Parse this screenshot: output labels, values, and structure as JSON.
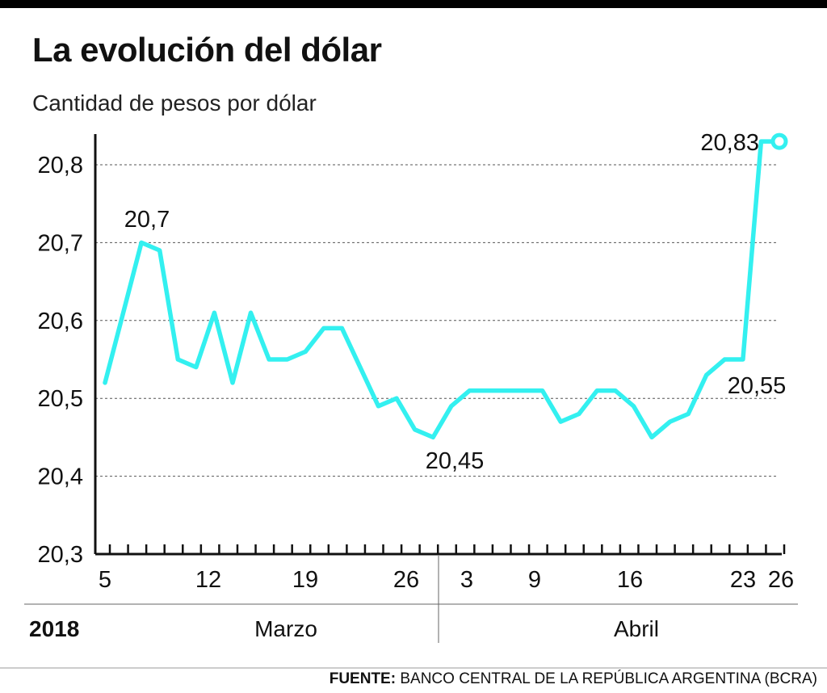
{
  "header": {
    "title": "La evolución del dólar",
    "subtitle": "Cantidad de pesos por dólar"
  },
  "source": {
    "label": "FUENTE:",
    "text": "BANCO CENTRAL DE LA REPÚBLICA ARGENTINA (BCRA)"
  },
  "colors": {
    "line": "#33f0f0",
    "axis": "#111111",
    "grid": "#555555"
  },
  "chart_data": {
    "type": "line",
    "title": "La evolución del dólar",
    "ylabel": "Cantidad de pesos por dólar",
    "ylim": [
      20.3,
      20.85
    ],
    "grid": true,
    "year_label": "2018",
    "months": [
      "Marzo",
      "Abril"
    ],
    "x_tick_labels": [
      "5",
      "12",
      "19",
      "26",
      "3",
      "9",
      "16",
      "23",
      "26"
    ],
    "y_tick_labels": [
      "20,3",
      "20,4",
      "20,5",
      "20,6",
      "20,7",
      "20,8"
    ],
    "series": [
      {
        "x": [
          "5/3",
          "6/3",
          "7/3",
          "8/3",
          "9/3",
          "12/3",
          "13/3",
          "14/3",
          "15/3",
          "16/3",
          "19/3",
          "20/3",
          "21/3",
          "22/3",
          "23/3",
          "26/3",
          "27/3",
          "28/3",
          "29/3",
          "2/4",
          "3/4",
          "4/4",
          "5/4",
          "6/4",
          "9/4",
          "10/4",
          "11/4",
          "12/4",
          "13/4",
          "16/4",
          "17/4",
          "18/4",
          "19/4",
          "20/4",
          "23/4",
          "24/4",
          "25/4",
          "26/4"
        ],
        "values": [
          20.52,
          20.61,
          20.7,
          20.69,
          20.55,
          20.54,
          20.61,
          20.52,
          20.61,
          20.55,
          20.55,
          20.56,
          20.59,
          20.59,
          20.54,
          20.49,
          20.5,
          20.46,
          20.45,
          20.49,
          20.51,
          20.51,
          20.51,
          20.51,
          20.51,
          20.47,
          20.48,
          20.51,
          20.51,
          20.49,
          20.45,
          20.47,
          20.48,
          20.53,
          20.55,
          20.55,
          20.83,
          20.83
        ]
      }
    ],
    "annotations": [
      "20,7",
      "20,45",
      "20,55",
      "20,83"
    ]
  }
}
